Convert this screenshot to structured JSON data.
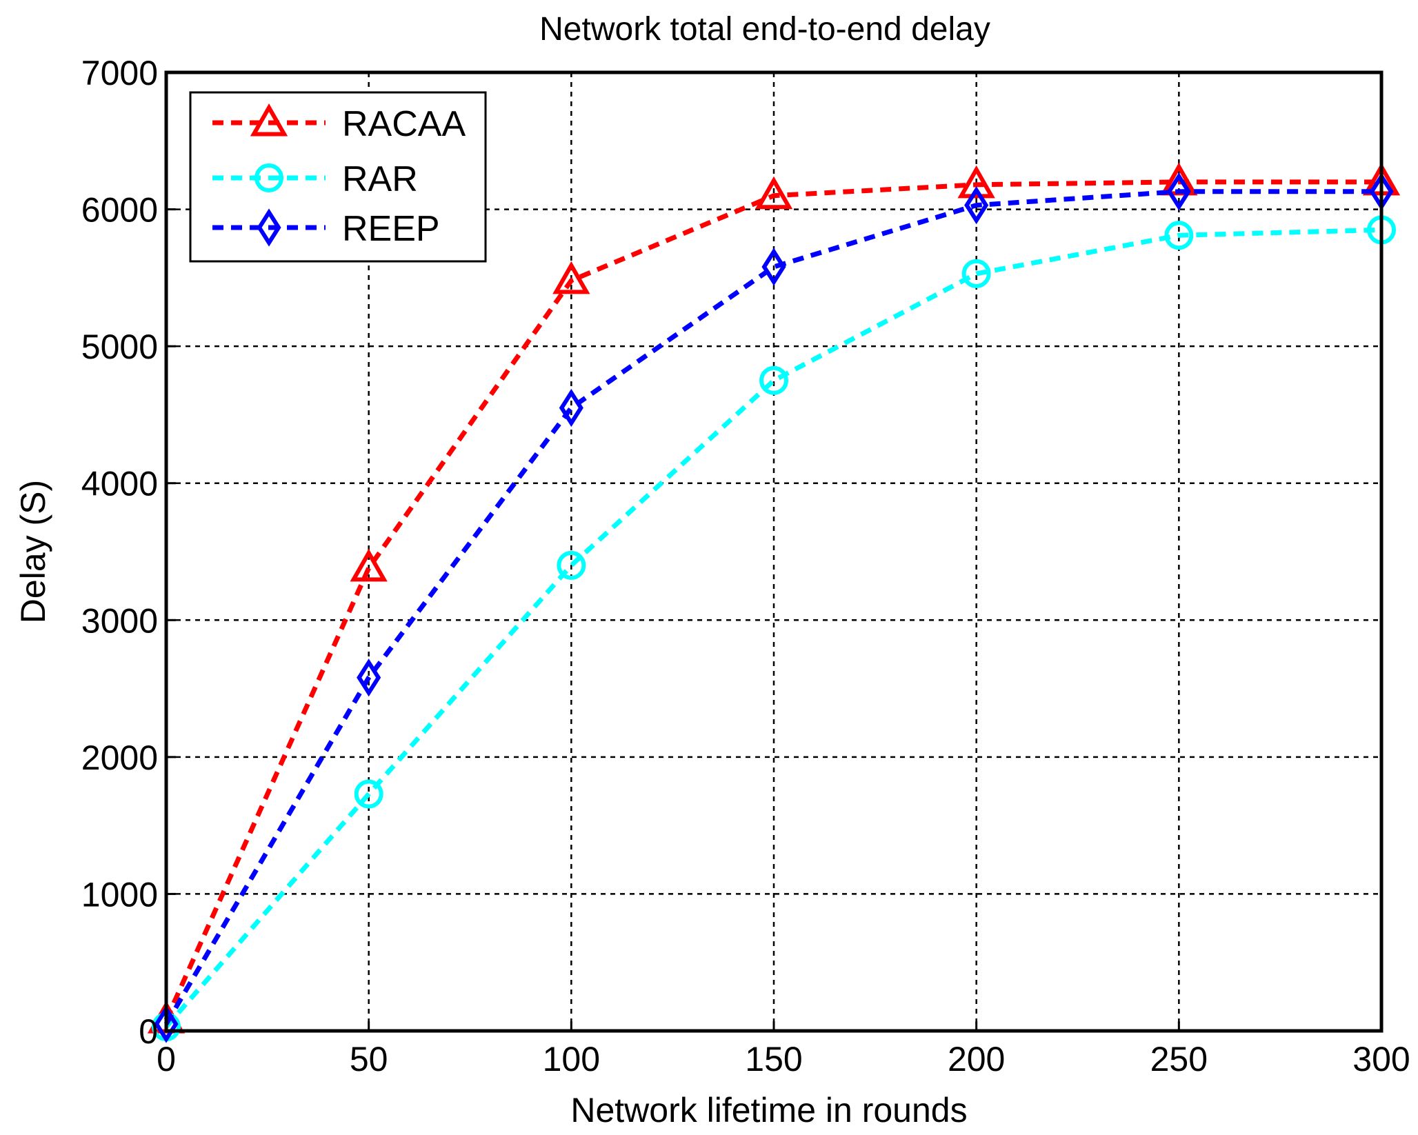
{
  "chart_data": {
    "type": "line",
    "title": "Network total end-to-end delay",
    "xlabel": "Network lifetime in rounds",
    "ylabel": "Delay (S)",
    "xlim": [
      0,
      300
    ],
    "ylim": [
      0,
      7000
    ],
    "xticks": [
      0,
      50,
      100,
      150,
      200,
      250,
      300
    ],
    "yticks": [
      0,
      1000,
      2000,
      3000,
      4000,
      5000,
      6000,
      7000
    ],
    "grid": true,
    "legend_position": "top-left",
    "x": [
      0,
      50,
      100,
      150,
      200,
      250,
      300
    ],
    "series": [
      {
        "name": "RACAA",
        "color": "#ff0000",
        "marker": "triangle",
        "line_style": "dashed",
        "values": [
          80,
          3380,
          5480,
          6100,
          6180,
          6200,
          6200
        ]
      },
      {
        "name": "RAR",
        "color": "#00ffff",
        "marker": "circle",
        "line_style": "dashed",
        "values": [
          30,
          1730,
          3400,
          4750,
          5530,
          5810,
          5850
        ]
      },
      {
        "name": "REEP",
        "color": "#0000ff",
        "marker": "diamond",
        "line_style": "dashed",
        "values": [
          50,
          2580,
          4550,
          5580,
          6030,
          6130,
          6130
        ]
      }
    ]
  }
}
